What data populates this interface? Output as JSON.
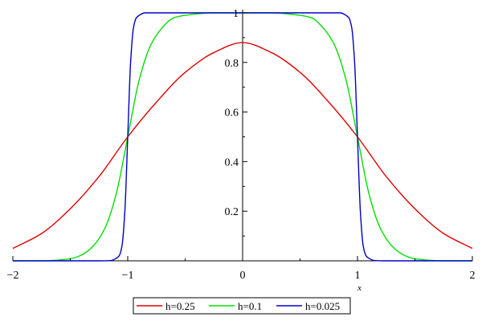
{
  "chart_data": {
    "type": "line",
    "title": "",
    "xlabel": "x",
    "ylabel": "",
    "xlim": [
      -2,
      2
    ],
    "ylim": [
      0,
      1
    ],
    "x_ticks": [
      -2,
      -1,
      0,
      1,
      2
    ],
    "x_tick_labels": [
      "−2",
      "−1",
      "0",
      "1",
      "2"
    ],
    "y_ticks": [
      0.2,
      0.4,
      0.6,
      0.8,
      1
    ],
    "y_tick_labels": [
      "0.2",
      "0.4",
      "0.6",
      "0.8",
      "1"
    ],
    "grid": false,
    "legend_position": "bottom",
    "series": [
      {
        "name": "h=0.25",
        "color": "#e00000",
        "x": [
          -2,
          -1.75,
          -1.5,
          -1.25,
          -1,
          -0.75,
          -0.5,
          -0.25,
          0,
          0.25,
          0.5,
          0.75,
          1,
          1.25,
          1.5,
          1.75,
          2
        ],
        "y": [
          0.05,
          0.11,
          0.21,
          0.34,
          0.5,
          0.64,
          0.76,
          0.84,
          0.88,
          0.84,
          0.76,
          0.64,
          0.5,
          0.34,
          0.21,
          0.11,
          0.05
        ]
      },
      {
        "name": "h=0.1",
        "color": "#00e000",
        "x": [
          -2,
          -1.75,
          -1.5,
          -1.4,
          -1.3,
          -1.2,
          -1.1,
          -1,
          -0.9,
          -0.8,
          -0.7,
          -0.6,
          -0.5,
          -0.25,
          0,
          0.25,
          0.5,
          0.6,
          0.7,
          0.8,
          0.9,
          1,
          1.1,
          1.2,
          1.3,
          1.4,
          1.5,
          1.75,
          2
        ],
        "y": [
          0.0,
          0.0003,
          0.008,
          0.024,
          0.06,
          0.13,
          0.27,
          0.5,
          0.73,
          0.87,
          0.94,
          0.98,
          0.99,
          1.0,
          1.0,
          1.0,
          0.99,
          0.98,
          0.94,
          0.87,
          0.73,
          0.5,
          0.27,
          0.13,
          0.06,
          0.024,
          0.008,
          0.0003,
          0.0
        ]
      },
      {
        "name": "h=0.025",
        "color": "#0000c8",
        "x": [
          -2,
          -1.25,
          -1.15,
          -1.1,
          -1.075,
          -1.05,
          -1.025,
          -1,
          -0.975,
          -0.95,
          -0.925,
          -0.9,
          -0.85,
          -0.75,
          0,
          0.75,
          0.85,
          0.9,
          0.925,
          0.95,
          0.975,
          1,
          1.025,
          1.05,
          1.075,
          1.1,
          1.15,
          1.25,
          2
        ],
        "y": [
          0.0,
          0.0,
          0.001,
          0.01,
          0.02,
          0.06,
          0.2,
          0.5,
          0.8,
          0.94,
          0.98,
          0.99,
          1.0,
          1.0,
          1.0,
          1.0,
          1.0,
          0.99,
          0.98,
          0.94,
          0.8,
          0.5,
          0.2,
          0.06,
          0.02,
          0.01,
          0.001,
          0.0,
          0.0
        ]
      }
    ]
  }
}
